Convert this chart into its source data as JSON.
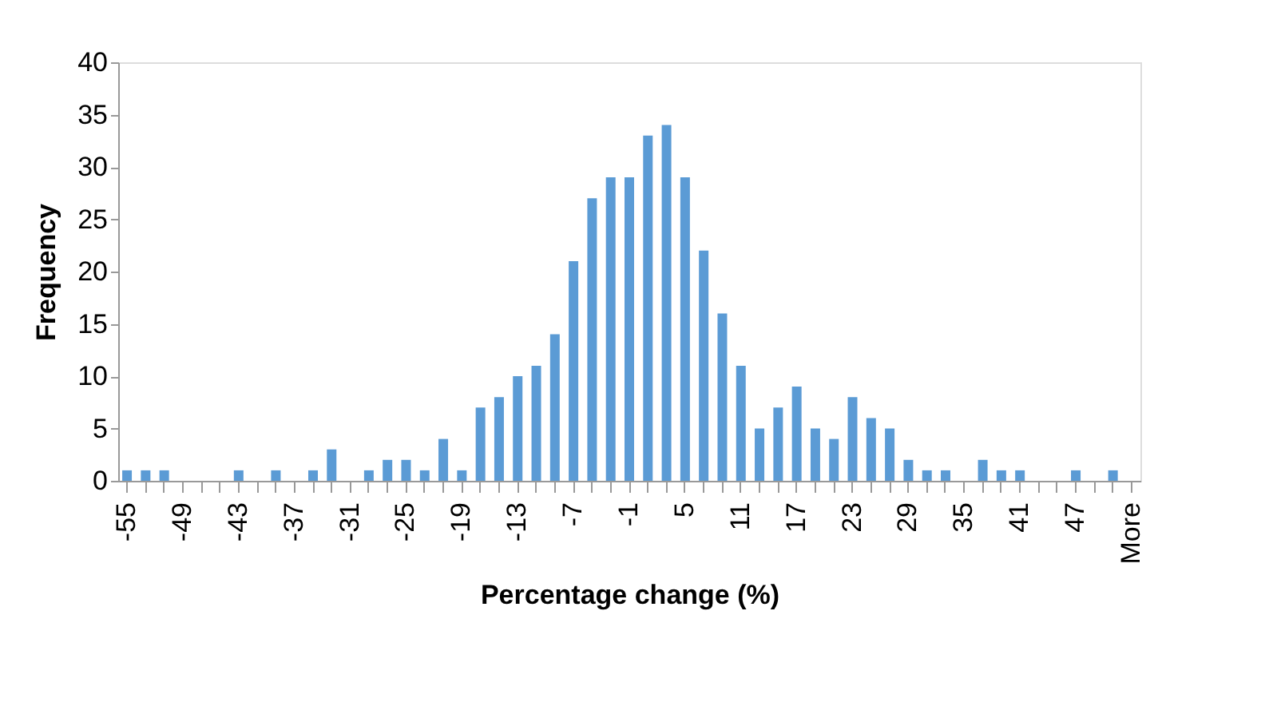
{
  "chart_data": {
    "type": "bar",
    "xlabel": "Percentage change (%)",
    "ylabel": "Frequency",
    "categories": [
      "-55",
      null,
      null,
      "-49",
      null,
      null,
      "-43",
      null,
      null,
      "-37",
      null,
      null,
      "-31",
      null,
      null,
      "-25",
      null,
      null,
      "-19",
      null,
      null,
      "-13",
      null,
      null,
      "-7",
      null,
      null,
      "-1",
      null,
      null,
      "5",
      null,
      null,
      "11",
      null,
      null,
      "17",
      null,
      null,
      "23",
      null,
      null,
      "29",
      null,
      null,
      "35",
      null,
      null,
      "41",
      null,
      null,
      "47",
      null,
      null,
      "More"
    ],
    "values": [
      1,
      1,
      1,
      0,
      0,
      0,
      1,
      0,
      1,
      0,
      1,
      3,
      0,
      1,
      2,
      2,
      1,
      4,
      1,
      7,
      8,
      10,
      11,
      14,
      21,
      27,
      29,
      29,
      33,
      34,
      29,
      22,
      16,
      11,
      5,
      7,
      9,
      5,
      4,
      8,
      6,
      5,
      2,
      1,
      1,
      0,
      2,
      1,
      1,
      0,
      0,
      1,
      0,
      1,
      0
    ],
    "color": "#5b9bd5",
    "ylim": [
      0,
      40
    ],
    "yticks": [
      0,
      5,
      10,
      15,
      20,
      25,
      30,
      35,
      40
    ],
    "grid": false
  }
}
